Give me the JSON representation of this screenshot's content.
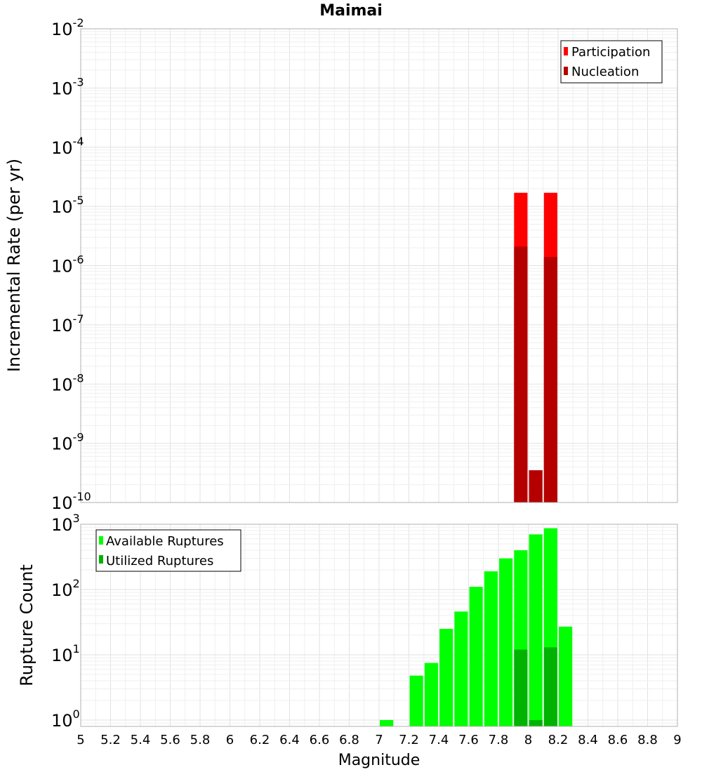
{
  "chart_data": [
    {
      "type": "bar",
      "title": "Maimai",
      "xlabel": "",
      "ylabel": "Incremental Rate (per yr)",
      "yscale": "log",
      "ylim": [
        1e-10,
        0.01
      ],
      "xlim": [
        5,
        9
      ],
      "grid": true,
      "legend_position": "top-right",
      "y_tick_labels": [
        {
          "base": "10",
          "exp": "-2"
        },
        {
          "base": "10",
          "exp": "-3"
        },
        {
          "base": "10",
          "exp": "-4"
        },
        {
          "base": "10",
          "exp": "-5"
        },
        {
          "base": "10",
          "exp": "-6"
        },
        {
          "base": "10",
          "exp": "-7"
        },
        {
          "base": "10",
          "exp": "-8"
        },
        {
          "base": "10",
          "exp": "-9"
        },
        {
          "base": "10",
          "exp": "-10"
        }
      ],
      "series": [
        {
          "name": "Participation",
          "color": "#ff0000",
          "x": [
            7.95,
            8.05,
            8.15
          ],
          "values": [
            1.7e-05,
            3.5e-10,
            1.7e-05
          ]
        },
        {
          "name": "Nucleation",
          "color": "#b50000",
          "x": [
            7.95,
            8.05,
            8.15
          ],
          "values": [
            2.1e-06,
            3.5e-10,
            1.4e-06
          ]
        }
      ]
    },
    {
      "type": "bar",
      "title": "",
      "xlabel": "Magnitude",
      "ylabel": "Rupture Count",
      "yscale": "log",
      "ylim": [
        0.8,
        1000
      ],
      "xlim": [
        5,
        9
      ],
      "grid": true,
      "legend_position": "top-left",
      "y_tick_labels": [
        {
          "base": "10",
          "exp": "3"
        },
        {
          "base": "10",
          "exp": "2"
        },
        {
          "base": "10",
          "exp": "1"
        },
        {
          "base": "10",
          "exp": "0"
        }
      ],
      "x_tick_labels": [
        "5",
        "5.2",
        "5.4",
        "5.6",
        "5.8",
        "6",
        "6.2",
        "6.4",
        "6.6",
        "6.8",
        "7",
        "7.2",
        "7.4",
        "7.6",
        "7.8",
        "8",
        "8.2",
        "8.4",
        "8.6",
        "8.8",
        "9"
      ],
      "series": [
        {
          "name": "Available Ruptures",
          "color": "#00ff00",
          "x": [
            7.05,
            7.25,
            7.35,
            7.45,
            7.55,
            7.65,
            7.75,
            7.85,
            7.95,
            8.05,
            8.15,
            8.25
          ],
          "values": [
            1,
            4.8,
            7.5,
            25,
            46,
            110,
            190,
            300,
            400,
            700,
            870,
            27
          ]
        },
        {
          "name": "Utilized Ruptures",
          "color": "#00b300",
          "x": [
            7.95,
            8.05,
            8.15
          ],
          "values": [
            12,
            1,
            13
          ]
        }
      ]
    }
  ]
}
